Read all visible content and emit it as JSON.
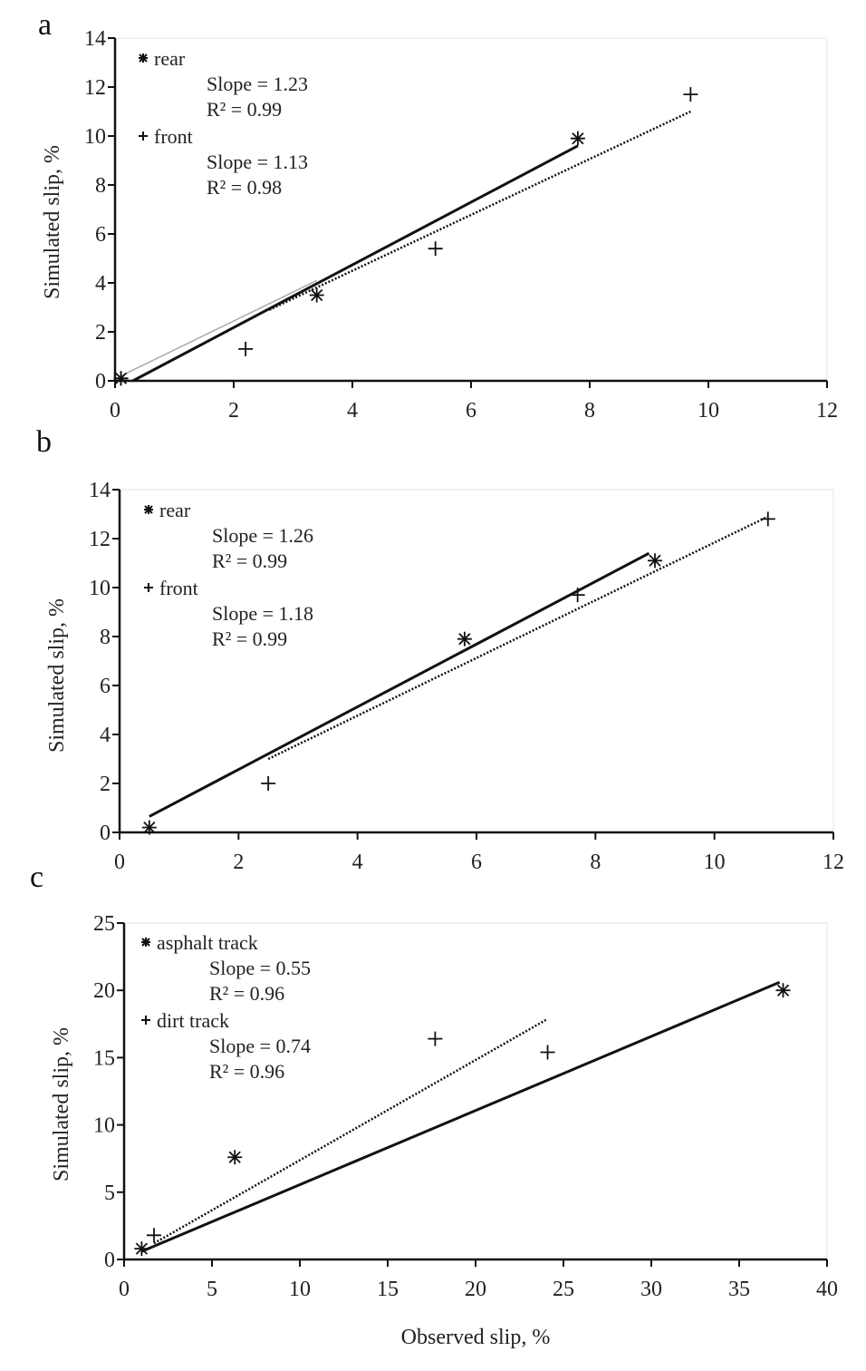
{
  "chart_data": [
    {
      "type": "scatter",
      "panel_label": "a",
      "ylabel": "Simulated slip, %",
      "xlabel": "",
      "xlim": [
        0,
        12
      ],
      "ylim": [
        0,
        14
      ],
      "xticks": [
        "0",
        "2",
        "4",
        "6",
        "8",
        "10",
        "12"
      ],
      "yticks": [
        "0",
        "2",
        "4",
        "6",
        "8",
        "10",
        "12",
        "14"
      ],
      "grid": false,
      "legend_position": "top-left",
      "series": [
        {
          "name": "rear",
          "marker": "*",
          "x": [
            0.1,
            3.4,
            7.8
          ],
          "y": [
            0.1,
            3.5,
            9.9
          ],
          "fit": {
            "style": "solid",
            "x": [
              0.3,
              7.8
            ],
            "y": [
              0.0,
              9.6
            ]
          },
          "slope_text": "Slope = 1.23",
          "r2_text": "R² = 0.99"
        },
        {
          "name": "front",
          "marker": "+",
          "x": [
            0.1,
            2.2,
            5.4,
            9.7
          ],
          "y": [
            0.1,
            1.3,
            5.4,
            11.7
          ],
          "fit": {
            "style": "dotted",
            "x": [
              2.6,
              9.7
            ],
            "y": [
              2.9,
              11.0
            ]
          },
          "slope_text": "Slope = 1.13",
          "r2_text": "R² = 0.98"
        }
      ],
      "extra_line": {
        "color": "#aaaaaa",
        "x": [
          0.1,
          3.4
        ],
        "y": [
          0.2,
          4.1
        ]
      }
    },
    {
      "type": "scatter",
      "panel_label": "b",
      "ylabel": "Simulated slip, %",
      "xlabel": "",
      "xlim": [
        0,
        12
      ],
      "ylim": [
        0,
        14
      ],
      "xticks": [
        "0",
        "2",
        "4",
        "6",
        "8",
        "10",
        "12"
      ],
      "yticks": [
        "0",
        "2",
        "4",
        "6",
        "8",
        "10",
        "12",
        "14"
      ],
      "grid": false,
      "legend_position": "top-left",
      "series": [
        {
          "name": "rear",
          "marker": "*",
          "x": [
            0.5,
            5.8,
            9.0
          ],
          "y": [
            0.2,
            7.9,
            11.1
          ],
          "fit": {
            "style": "solid",
            "x": [
              0.5,
              8.9
            ],
            "y": [
              0.65,
              11.4
            ]
          },
          "slope_text": "Slope = 1.26",
          "r2_text": "R² = 0.99"
        },
        {
          "name": "front",
          "marker": "+",
          "x": [
            2.5,
            7.7,
            10.9
          ],
          "y": [
            2.0,
            9.7,
            12.8
          ],
          "fit": {
            "style": "dotted",
            "x": [
              2.5,
              10.9
            ],
            "y": [
              3.0,
              12.9
            ]
          },
          "slope_text": "Slope = 1.18",
          "r2_text": "R² = 0.99"
        }
      ]
    },
    {
      "type": "scatter",
      "panel_label": "c",
      "ylabel": "Simulated slip, %",
      "xlabel": "Observed slip, %",
      "xlim": [
        0,
        40
      ],
      "ylim": [
        0,
        25
      ],
      "xticks": [
        "0",
        "5",
        "10",
        "15",
        "20",
        "25",
        "30",
        "35",
        "40"
      ],
      "yticks": [
        "0",
        "5",
        "10",
        "15",
        "20",
        "25"
      ],
      "grid": false,
      "legend_position": "top-left",
      "series": [
        {
          "name": "asphalt track",
          "marker": "*",
          "x": [
            1.0,
            6.3,
            37.5
          ],
          "y": [
            0.8,
            7.6,
            20.0
          ],
          "fit": {
            "style": "solid",
            "x": [
              1.0,
              37.3
            ],
            "y": [
              0.6,
              20.6
            ]
          },
          "slope_text": "Slope = 0.55",
          "r2_text": "R² = 0.96"
        },
        {
          "name": "dirt track",
          "marker": "+",
          "x": [
            1.7,
            17.7,
            24.1
          ],
          "y": [
            1.8,
            16.4,
            15.4
          ],
          "fit": {
            "style": "dotted",
            "x": [
              1.7,
              24.0
            ],
            "y": [
              1.2,
              17.8
            ]
          },
          "slope_text": "Slope = 0.74",
          "r2_text": "R² = 0.96"
        }
      ]
    }
  ]
}
